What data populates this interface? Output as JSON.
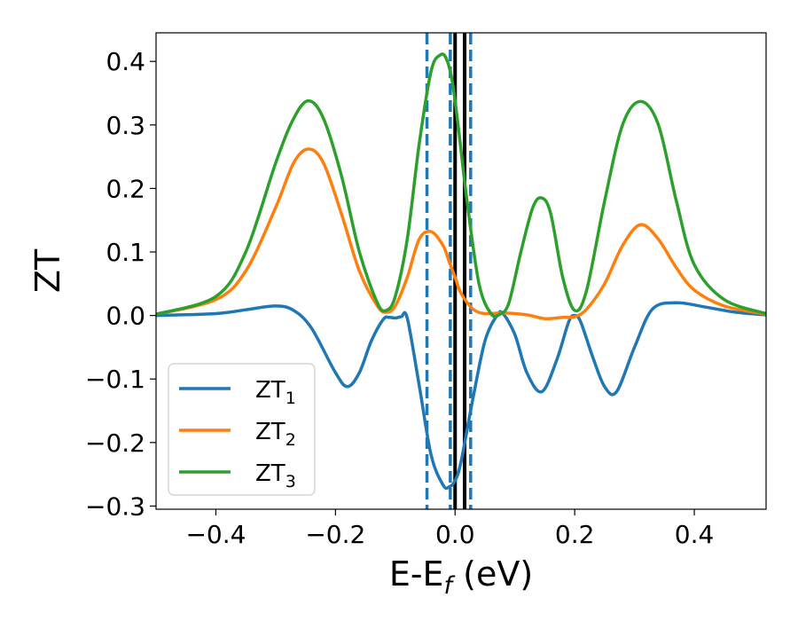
{
  "chart_data": {
    "type": "line",
    "xlabel": "E-E",
    "xlabel_sub": "f",
    "xlabel_unit": " (eV)",
    "ylabel": "ZT",
    "xlim": [
      -0.5,
      0.52
    ],
    "ylim": [
      -0.305,
      0.445
    ],
    "xticks": [
      -0.4,
      -0.2,
      0.0,
      0.2,
      0.4
    ],
    "xtick_labels": [
      "−0.4",
      "−0.2",
      "0.0",
      "0.2",
      "0.4"
    ],
    "yticks": [
      -0.3,
      -0.2,
      -0.1,
      0.0,
      0.1,
      0.2,
      0.3,
      0.4
    ],
    "ytick_labels": [
      "−0.3",
      "−0.2",
      "−0.1",
      "0.0",
      "0.1",
      "0.2",
      "0.3",
      "0.4"
    ],
    "grid": false,
    "legend_position": "lower-left",
    "series": [
      {
        "name": "ZT",
        "subscript": "1",
        "color": "#1f77b4",
        "x": [
          -0.5,
          -0.4,
          -0.35,
          -0.3,
          -0.27,
          -0.24,
          -0.2,
          -0.18,
          -0.16,
          -0.14,
          -0.12,
          -0.11,
          -0.1,
          -0.09,
          -0.08,
          -0.06,
          -0.04,
          -0.02,
          -0.01,
          0.0,
          0.01,
          0.03,
          0.05,
          0.07,
          0.08,
          0.1,
          0.12,
          0.145,
          0.17,
          0.19,
          0.2,
          0.21,
          0.23,
          0.25,
          0.27,
          0.3,
          0.33,
          0.37,
          0.42,
          0.47,
          0.52
        ],
        "y": [
          0.0,
          0.003,
          0.009,
          0.015,
          0.008,
          -0.02,
          -0.09,
          -0.112,
          -0.09,
          -0.04,
          -0.006,
          -0.003,
          -0.004,
          -0.002,
          -0.004,
          -0.11,
          -0.22,
          -0.267,
          -0.27,
          -0.26,
          -0.23,
          -0.13,
          -0.04,
          0.0,
          0.003,
          -0.03,
          -0.09,
          -0.12,
          -0.07,
          -0.01,
          0.0,
          -0.01,
          -0.065,
          -0.112,
          -0.12,
          -0.05,
          0.01,
          0.02,
          0.013,
          0.005,
          0.001
        ]
      },
      {
        "name": "ZT",
        "subscript": "2",
        "color": "#ff7f0e",
        "x": [
          -0.5,
          -0.4,
          -0.35,
          -0.3,
          -0.27,
          -0.245,
          -0.22,
          -0.19,
          -0.16,
          -0.13,
          -0.115,
          -0.1,
          -0.08,
          -0.06,
          -0.04,
          -0.02,
          -0.01,
          0.0,
          0.01,
          0.03,
          0.05,
          0.08,
          0.12,
          0.15,
          0.18,
          0.2,
          0.22,
          0.25,
          0.28,
          0.31,
          0.34,
          0.37,
          0.4,
          0.45,
          0.52
        ],
        "y": [
          0.002,
          0.025,
          0.07,
          0.17,
          0.24,
          0.262,
          0.24,
          0.16,
          0.07,
          0.015,
          0.005,
          0.015,
          0.06,
          0.12,
          0.132,
          0.11,
          0.085,
          0.06,
          0.035,
          0.01,
          0.003,
          0.004,
          0.001,
          -0.005,
          -0.003,
          -0.002,
          0.01,
          0.05,
          0.11,
          0.143,
          0.12,
          0.075,
          0.04,
          0.015,
          0.002
        ]
      },
      {
        "name": "ZT",
        "subscript": "3",
        "color": "#2ca02c",
        "x": [
          -0.5,
          -0.4,
          -0.35,
          -0.3,
          -0.27,
          -0.245,
          -0.22,
          -0.19,
          -0.16,
          -0.13,
          -0.115,
          -0.1,
          -0.08,
          -0.06,
          -0.04,
          -0.025,
          -0.015,
          -0.005,
          0.005,
          0.02,
          0.04,
          0.06,
          0.075,
          0.09,
          0.11,
          0.13,
          0.145,
          0.16,
          0.18,
          0.2,
          0.22,
          0.25,
          0.28,
          0.31,
          0.34,
          0.37,
          0.4,
          0.45,
          0.52
        ],
        "y": [
          0.002,
          0.03,
          0.1,
          0.24,
          0.31,
          0.338,
          0.31,
          0.22,
          0.1,
          0.02,
          0.008,
          0.03,
          0.12,
          0.27,
          0.385,
          0.41,
          0.405,
          0.37,
          0.3,
          0.18,
          0.05,
          0.003,
          0.002,
          0.02,
          0.1,
          0.17,
          0.185,
          0.16,
          0.06,
          0.008,
          0.04,
          0.18,
          0.3,
          0.337,
          0.3,
          0.18,
          0.08,
          0.025,
          0.003
        ]
      }
    ],
    "vlines": [
      {
        "x": -0.047,
        "style": "dashed",
        "color": "#1f77b4"
      },
      {
        "x": -0.008,
        "style": "dashed",
        "color": "#1f77b4"
      },
      {
        "x": 0.026,
        "style": "dashed",
        "color": "#1f77b4"
      },
      {
        "x": 0.0,
        "style": "solid",
        "color": "#000000"
      },
      {
        "x": 0.016,
        "style": "solid",
        "color": "#000000"
      }
    ]
  }
}
